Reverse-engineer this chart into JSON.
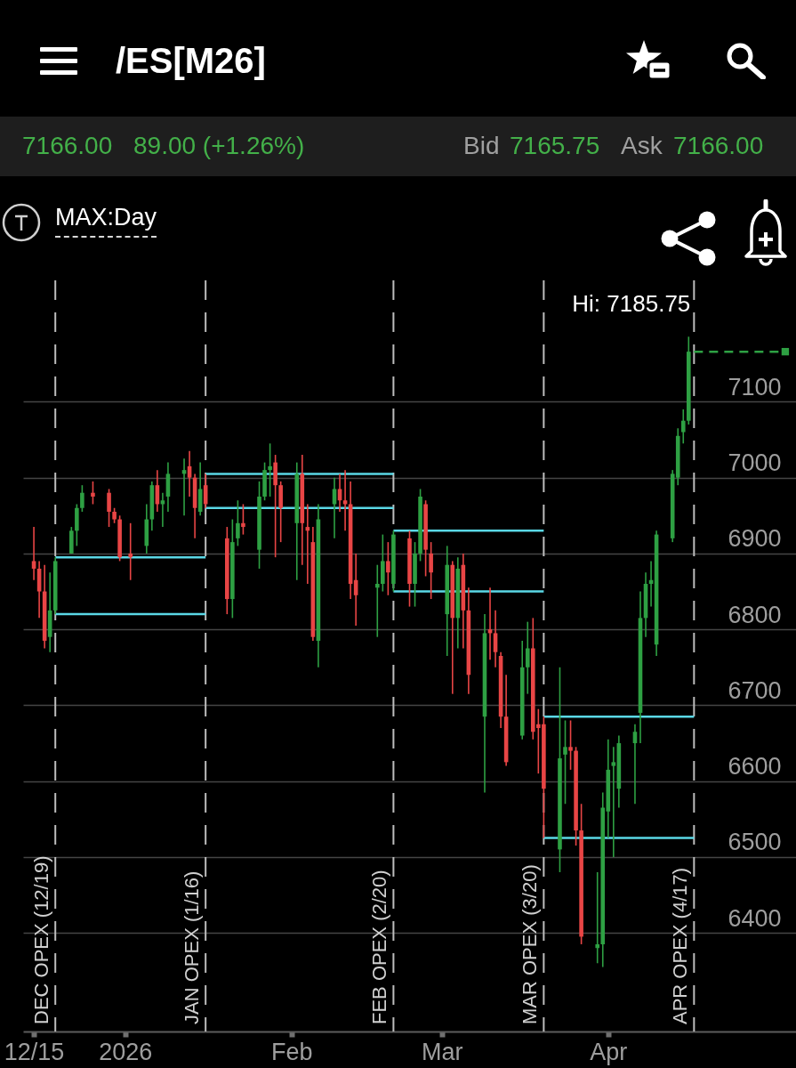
{
  "chart_data": {
    "type": "candlestick",
    "title": "/ES[M26]",
    "annotations": [
      "7166.00",
      "89.00 (+1.26%)",
      "Bid",
      "7165.75",
      "Ask",
      "7166.00",
      "MAX:Day",
      {
        "text": "Hi: 7185.75",
        "x": "2026-04-16",
        "y": 7185.75
      }
    ],
    "x": [
      "2025-12-15",
      "2025-12-16",
      "2025-12-17",
      "2025-12-18",
      "2025-12-19",
      "2025-12-22",
      "2025-12-23",
      "2025-12-24",
      "2025-12-26",
      "2025-12-29",
      "2025-12-30",
      "2025-12-31",
      "2026-01-02",
      "2026-01-05",
      "2026-01-06",
      "2026-01-07",
      "2026-01-08",
      "2026-01-09",
      "2026-01-12",
      "2026-01-13",
      "2026-01-14",
      "2026-01-15",
      "2026-01-16",
      "2026-01-20",
      "2026-01-21",
      "2026-01-22",
      "2026-01-23",
      "2026-01-26",
      "2026-01-27",
      "2026-01-28",
      "2026-01-29",
      "2026-01-30",
      "2026-02-02",
      "2026-02-03",
      "2026-02-04",
      "2026-02-05",
      "2026-02-06",
      "2026-02-09",
      "2026-02-10",
      "2026-02-11",
      "2026-02-12",
      "2026-02-13",
      "2026-02-17",
      "2026-02-18",
      "2026-02-19",
      "2026-02-20",
      "2026-02-23",
      "2026-02-24",
      "2026-02-25",
      "2026-02-26",
      "2026-02-27",
      "2026-03-02",
      "2026-03-03",
      "2026-03-04",
      "2026-03-05",
      "2026-03-06",
      "2026-03-09",
      "2026-03-10",
      "2026-03-11",
      "2026-03-12",
      "2026-03-13",
      "2026-03-16",
      "2026-03-17",
      "2026-03-18",
      "2026-03-19",
      "2026-03-20",
      "2026-03-23",
      "2026-03-24",
      "2026-03-25",
      "2026-03-26",
      "2026-03-27",
      "2026-03-30",
      "2026-03-31",
      "2026-04-01",
      "2026-04-02",
      "2026-04-03",
      "2026-04-06",
      "2026-04-07",
      "2026-04-08",
      "2026-04-09",
      "2026-04-10",
      "2026-04-13",
      "2026-04-14",
      "2026-04-15",
      "2026-04-16"
    ],
    "ohlc": [
      [
        6890,
        6935,
        6865,
        6880
      ],
      [
        6880,
        6890,
        6815,
        6850
      ],
      [
        6850,
        6885,
        6775,
        6785
      ],
      [
        6790,
        6875,
        6770,
        6825
      ],
      [
        6825,
        6895,
        6820,
        6890
      ],
      [
        6900,
        6935,
        6900,
        6930
      ],
      [
        6930,
        6965,
        6910,
        6960
      ],
      [
        6960,
        6990,
        6955,
        6980
      ],
      [
        6980,
        6995,
        6965,
        6975
      ],
      [
        6980,
        6985,
        6935,
        6955
      ],
      [
        6955,
        6960,
        6940,
        6945
      ],
      [
        6945,
        6950,
        6890,
        6895
      ],
      [
        6900,
        6940,
        6865,
        6895
      ],
      [
        6910,
        6965,
        6900,
        6945
      ],
      [
        6945,
        6995,
        6930,
        6990
      ],
      [
        6990,
        7010,
        6955,
        6965
      ],
      [
        6965,
        6980,
        6935,
        6970
      ],
      [
        6975,
        7020,
        6955,
        7005
      ],
      [
        7005,
        7025,
        6950,
        7010
      ],
      [
        7015,
        7035,
        6975,
        7000
      ],
      [
        7000,
        7005,
        6920,
        6960
      ],
      [
        6955,
        7020,
        6950,
        6985
      ],
      [
        6990,
        7005,
        6960,
        6965
      ],
      [
        6920,
        6935,
        6820,
        6840
      ],
      [
        6840,
        6945,
        6815,
        6915
      ],
      [
        6920,
        6970,
        6910,
        6940
      ],
      [
        6940,
        6965,
        6925,
        6935
      ],
      [
        6905,
        6995,
        6880,
        6975
      ],
      [
        6975,
        7020,
        6970,
        7010
      ],
      [
        7010,
        7045,
        6975,
        7015
      ],
      [
        7020,
        7030,
        6895,
        6990
      ],
      [
        6990,
        6995,
        6915,
        6960
      ],
      [
        6940,
        7020,
        6865,
        7005
      ],
      [
        7005,
        7030,
        6885,
        6940
      ],
      [
        6935,
        6965,
        6860,
        6930
      ],
      [
        6915,
        6935,
        6785,
        6790
      ],
      [
        6785,
        6965,
        6750,
        6945
      ],
      [
        6965,
        7000,
        6920,
        6985
      ],
      [
        6985,
        7005,
        6955,
        6970
      ],
      [
        6970,
        7010,
        6930,
        6965
      ],
      [
        6965,
        6995,
        6840,
        6860
      ],
      [
        6865,
        6900,
        6805,
        6845
      ],
      [
        6855,
        6885,
        6790,
        6860
      ],
      [
        6860,
        6925,
        6850,
        6890
      ],
      [
        6890,
        6915,
        6845,
        6875
      ],
      [
        6860,
        6930,
        6850,
        6925
      ],
      [
        6920,
        6930,
        6830,
        6860
      ],
      [
        6860,
        6915,
        6830,
        6900
      ],
      [
        6900,
        6985,
        6890,
        6975
      ],
      [
        6965,
        6970,
        6870,
        6905
      ],
      [
        6900,
        6915,
        6840,
        6875
      ],
      [
        6820,
        6910,
        6765,
        6885
      ],
      [
        6885,
        6890,
        6715,
        6815
      ],
      [
        6815,
        6895,
        6775,
        6880
      ],
      [
        6885,
        6900,
        6775,
        6825
      ],
      [
        6825,
        6855,
        6715,
        6740
      ],
      [
        6685,
        6820,
        6585,
        6795
      ],
      [
        6800,
        6855,
        6760,
        6795
      ],
      [
        6795,
        6825,
        6750,
        6770
      ],
      [
        6765,
        6770,
        6670,
        6685
      ],
      [
        6685,
        6740,
        6620,
        6625
      ],
      [
        6660,
        6785,
        6655,
        6750
      ],
      [
        6750,
        6810,
        6715,
        6775
      ],
      [
        6775,
        6815,
        6655,
        6665
      ],
      [
        6675,
        6695,
        6610,
        6670
      ],
      [
        6675,
        6685,
        6525,
        6590
      ],
      [
        6510,
        6750,
        6480,
        6630
      ],
      [
        6635,
        6680,
        6570,
        6645
      ],
      [
        6645,
        6680,
        6615,
        6640
      ],
      [
        6640,
        6645,
        6515,
        6535
      ],
      [
        6535,
        6570,
        6385,
        6395
      ],
      [
        6380,
        6480,
        6360,
        6385
      ],
      [
        6385,
        6585,
        6355,
        6565
      ],
      [
        6560,
        6655,
        6525,
        6615
      ],
      [
        6620,
        6645,
        6500,
        6625
      ],
      [
        6590,
        6660,
        6565,
        6650
      ],
      [
        6650,
        6675,
        6570,
        6665
      ],
      [
        6690,
        6850,
        6650,
        6815
      ],
      [
        6815,
        6875,
        6790,
        6860
      ],
      [
        6860,
        6890,
        6830,
        6865
      ],
      [
        6780,
        6930,
        6765,
        6925
      ],
      [
        6920,
        7010,
        6915,
        7005
      ],
      [
        7000,
        7065,
        6990,
        7055
      ],
      [
        7060,
        7090,
        7045,
        7075
      ],
      [
        7075,
        7185.75,
        7070,
        7166
      ]
    ],
    "colors": [
      "#e84545",
      "#e84545",
      "#e84545",
      "#2ea043",
      "#2ea043",
      "#2ea043",
      "#2ea043",
      "#2ea043",
      "#e84545",
      "#e84545",
      "#e84545",
      "#e84545",
      "#e84545",
      "#2ea043",
      "#2ea043",
      "#e84545",
      "#2ea043",
      "#2ea043",
      "#2ea043",
      "#e84545",
      "#e84545",
      "#2ea043",
      "#e84545",
      "#e84545",
      "#2ea043",
      "#2ea043",
      "#e84545",
      "#2ea043",
      "#2ea043",
      "#2ea043",
      "#e84545",
      "#e84545",
      "#2ea043",
      "#e84545",
      "#e84545",
      "#e84545",
      "#2ea043",
      "#2ea043",
      "#e84545",
      "#e84545",
      "#e84545",
      "#e84545",
      "#2ea043",
      "#2ea043",
      "#e84545",
      "#2ea043",
      "#e84545",
      "#2ea043",
      "#2ea043",
      "#e84545",
      "#e84545",
      "#2ea043",
      "#e84545",
      "#2ea043",
      "#e84545",
      "#e84545",
      "#2ea043",
      "#e84545",
      "#e84545",
      "#e84545",
      "#e84545",
      "#2ea043",
      "#2ea043",
      "#e84545",
      "#e84545",
      "#e84545",
      "#2ea043",
      "#2ea043",
      "#e84545",
      "#e84545",
      "#e84545",
      "#2ea043",
      "#2ea043",
      "#2ea043",
      "#2ea043",
      "#2ea043",
      "#2ea043",
      "#2ea043",
      "#2ea043",
      "#2ea043",
      "#2ea043",
      "#2ea043",
      "#2ea043",
      "#2ea043",
      "#2ea043"
    ],
    "series": [
      {
        "type": "line",
        "x": [
          "2025-12-19",
          "2026-01-16"
        ],
        "values": [
          6895,
          6895
        ],
        "color": "#5ad8e6"
      },
      {
        "type": "line",
        "x": [
          "2025-12-19",
          "2026-01-16"
        ],
        "values": [
          6820,
          6820
        ],
        "color": "#5ad8e6"
      },
      {
        "type": "line",
        "x": [
          "2026-01-16",
          "2026-02-20"
        ],
        "values": [
          7005,
          7005
        ],
        "color": "#5ad8e6"
      },
      {
        "type": "line",
        "x": [
          "2026-01-16",
          "2026-02-20"
        ],
        "values": [
          6960,
          6960
        ],
        "color": "#5ad8e6"
      },
      {
        "type": "line",
        "x": [
          "2026-02-20",
          "2026-03-20"
        ],
        "values": [
          6930,
          6930
        ],
        "color": "#5ad8e6"
      },
      {
        "type": "line",
        "x": [
          "2026-02-20",
          "2026-03-20"
        ],
        "values": [
          6850,
          6850
        ],
        "color": "#5ad8e6"
      },
      {
        "type": "line",
        "x": [
          "2026-03-20",
          "2026-04-17"
        ],
        "values": [
          6685,
          6685
        ],
        "color": "#5ad8e6"
      },
      {
        "type": "line",
        "x": [
          "2026-03-20",
          "2026-04-17"
        ],
        "values": [
          6525,
          6525
        ],
        "color": "#5ad8e6"
      },
      {
        "type": "line",
        "x": [
          "2026-04-17",
          "2026-05-04"
        ],
        "values": [
          7166,
          7166
        ],
        "color": "#2ea043",
        "line_style": "dashed"
      },
      {
        "type": "scatter",
        "x": [
          "2026-05-04"
        ],
        "values": [
          7166
        ],
        "color": "#2ea043",
        "marker": "square"
      }
    ],
    "xlim": [
      "2025-12-13",
      "2026-05-06"
    ],
    "xticks": [
      {
        "value": "2025-12-15",
        "label": "12/15"
      },
      {
        "value": "2026-01-01",
        "label": "2026"
      },
      {
        "value": "2026-02-01",
        "label": "Feb"
      },
      {
        "value": "2026-03-01",
        "label": "Mar"
      },
      {
        "value": "2026-04-01",
        "label": "Apr"
      }
    ],
    "ylim": [
      6270,
      7260
    ],
    "yticks": [
      6400,
      6500,
      6600,
      6700,
      6800,
      6900,
      7000,
      7100
    ],
    "grid": "y",
    "ref_lines": [
      {
        "axis": "x",
        "value": "2025-12-19",
        "label": "DEC OPEX (12/19)",
        "color": "#bdbdbd",
        "line_style": "dashed"
      },
      {
        "axis": "x",
        "value": "2026-01-16",
        "label": "JAN OPEX (1/16)",
        "color": "#bdbdbd",
        "line_style": "dashed"
      },
      {
        "axis": "x",
        "value": "2026-02-20",
        "label": "FEB OPEX (2/20)",
        "color": "#bdbdbd",
        "line_style": "dashed"
      },
      {
        "axis": "x",
        "value": "2026-03-20",
        "label": "MAR OPEX (3/20)",
        "color": "#bdbdbd",
        "line_style": "dashed"
      },
      {
        "axis": "x",
        "value": "2026-04-17",
        "label": "APR OPEX (4/17)",
        "color": "#bdbdbd",
        "line_style": "dashed"
      }
    ]
  }
}
